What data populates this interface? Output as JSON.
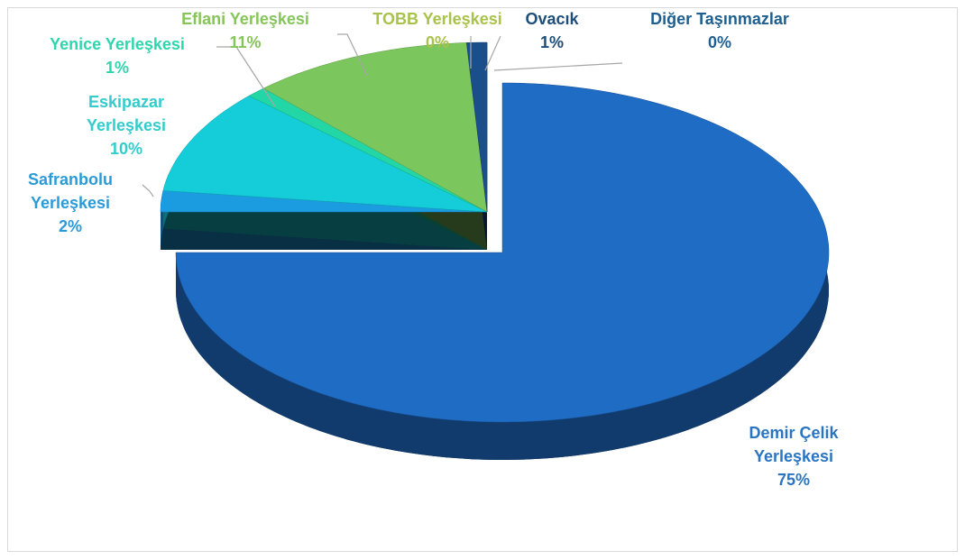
{
  "chart_data": {
    "type": "pie3d",
    "categories": [
      "Demir Çelik Yerleşkesi",
      "Safranbolu Yerleşkesi",
      "Eskipazar Yerleşkesi",
      "Yenice Yerleşkesi",
      "Eflani Yerleşkesi",
      "TOBB Yerleşkesi",
      "Ovacık",
      "Diğer Taşınmazlar"
    ],
    "values": [
      75,
      2,
      10,
      1,
      11,
      0,
      1,
      0
    ],
    "value_labels": [
      "75%",
      "2%",
      "10%",
      "1%",
      "11%",
      "0%",
      "1%",
      "0%"
    ],
    "colors": [
      "#1f6cc4",
      "#1b9be0",
      "#14cdd8",
      "#22d6a6",
      "#7cc65e",
      "#b6c94a",
      "#1b4f8c",
      "#1f5f8f"
    ],
    "label_colors": [
      "#2a74c0",
      "#2b9bd8",
      "#33cccc",
      "#2ed6ae",
      "#86c55a",
      "#a8c24a",
      "#1f4e79",
      "#1f5f8f"
    ]
  }
}
